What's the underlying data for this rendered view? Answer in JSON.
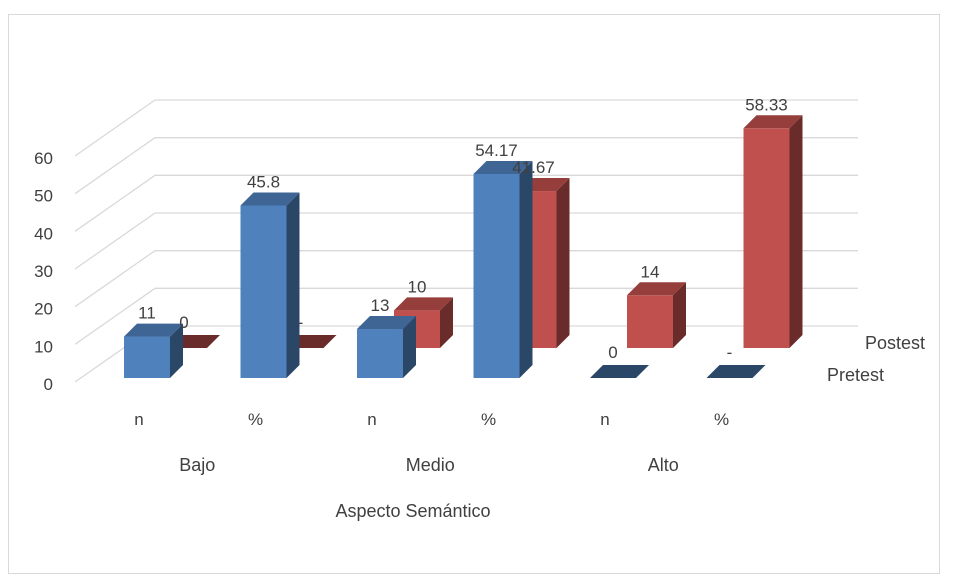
{
  "chart_data": {
    "type": "bar",
    "subtype": "3d-clustered-column",
    "title": "",
    "xlabel": "Aspecto Semántico",
    "ylabel": "",
    "ylim": [
      0,
      60
    ],
    "yticks": [
      "0",
      "10",
      "20",
      "30",
      "40",
      "50",
      "60"
    ],
    "groups": [
      "Bajo",
      "Medio",
      "Alto"
    ],
    "categories": [
      "n",
      "%",
      "n",
      "%",
      "n",
      "%"
    ],
    "series": [
      {
        "name": "Pretest",
        "color": "#4f81bd",
        "values": [
          11,
          45.8,
          13,
          54.17,
          0,
          0
        ],
        "labels": [
          "11",
          "45.8",
          "13",
          "54.17",
          "0",
          "-"
        ]
      },
      {
        "name": "Postest",
        "color": "#c0504d",
        "values": [
          0,
          0,
          10,
          41.67,
          14,
          58.33
        ],
        "labels": [
          "0",
          "-",
          "10",
          "41.67",
          "14",
          "58.33"
        ]
      }
    ],
    "grid": true,
    "legend": "depth-axis-right"
  }
}
